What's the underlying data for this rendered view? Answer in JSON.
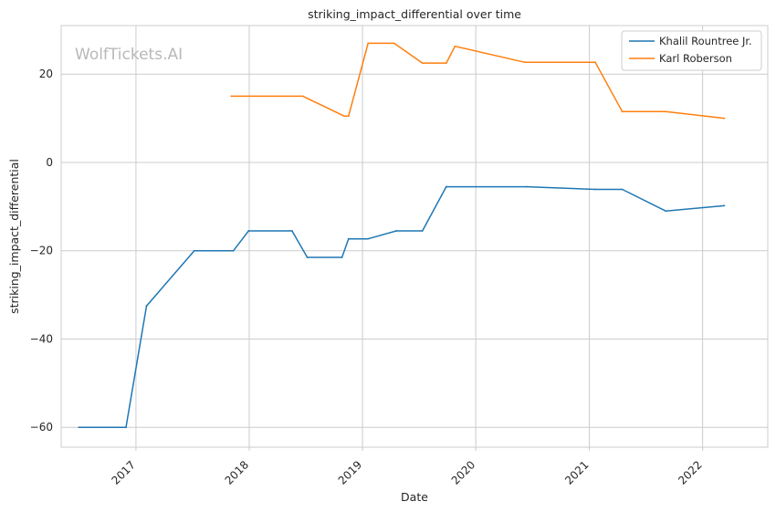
{
  "watermark": "WolfTickets.AI",
  "chart_data": {
    "type": "line",
    "title": "striking_impact_differential over time",
    "xlabel": "Date",
    "ylabel": "striking_impact_differential",
    "x_ticks": [
      "2017",
      "2018",
      "2019",
      "2020",
      "2021",
      "2022"
    ],
    "y_ticks": [
      -60,
      -40,
      -20,
      0,
      20
    ],
    "xlim": [
      "2016-05-05",
      "2022-07-30"
    ],
    "ylim": [
      -64.5,
      31
    ],
    "grid": true,
    "legend_position": "top-right",
    "series": [
      {
        "name": "Khalil Rountree Jr.",
        "color": "#1f77b4",
        "points": [
          [
            "2016-07-01",
            -60
          ],
          [
            "2016-11-30",
            -60
          ],
          [
            "2017-02-04",
            -32.5
          ],
          [
            "2017-07-08",
            -20
          ],
          [
            "2017-11-11",
            -20
          ],
          [
            "2017-12-30",
            -15.5
          ],
          [
            "2018-05-19",
            -15.5
          ],
          [
            "2018-07-07",
            -21.5
          ],
          [
            "2018-10-27",
            -21.5
          ],
          [
            "2018-11-17",
            -17.3
          ],
          [
            "2019-01-19",
            -17.3
          ],
          [
            "2019-04-20",
            -15.5
          ],
          [
            "2019-07-13",
            -15.5
          ],
          [
            "2019-09-28",
            -5.5
          ],
          [
            "2020-06-13",
            -5.5
          ],
          [
            "2021-01-20",
            -6.1
          ],
          [
            "2021-04-17",
            -6.1
          ],
          [
            "2021-09-04",
            -11
          ],
          [
            "2022-03-12",
            -9.8
          ]
        ]
      },
      {
        "name": "Karl Roberson",
        "color": "#ff7f0e",
        "points": [
          [
            "2017-11-04",
            15
          ],
          [
            "2018-06-23",
            15
          ],
          [
            "2018-11-03",
            10.5
          ],
          [
            "2018-11-17",
            10.5
          ],
          [
            "2019-01-19",
            27
          ],
          [
            "2019-04-13",
            27
          ],
          [
            "2019-07-13",
            22.5
          ],
          [
            "2019-09-28",
            22.5
          ],
          [
            "2019-10-26",
            26.3
          ],
          [
            "2020-06-06",
            22.7
          ],
          [
            "2021-01-20",
            22.7
          ],
          [
            "2021-04-17",
            11.5
          ],
          [
            "2021-09-04",
            11.5
          ],
          [
            "2022-03-12",
            10
          ]
        ]
      }
    ]
  }
}
